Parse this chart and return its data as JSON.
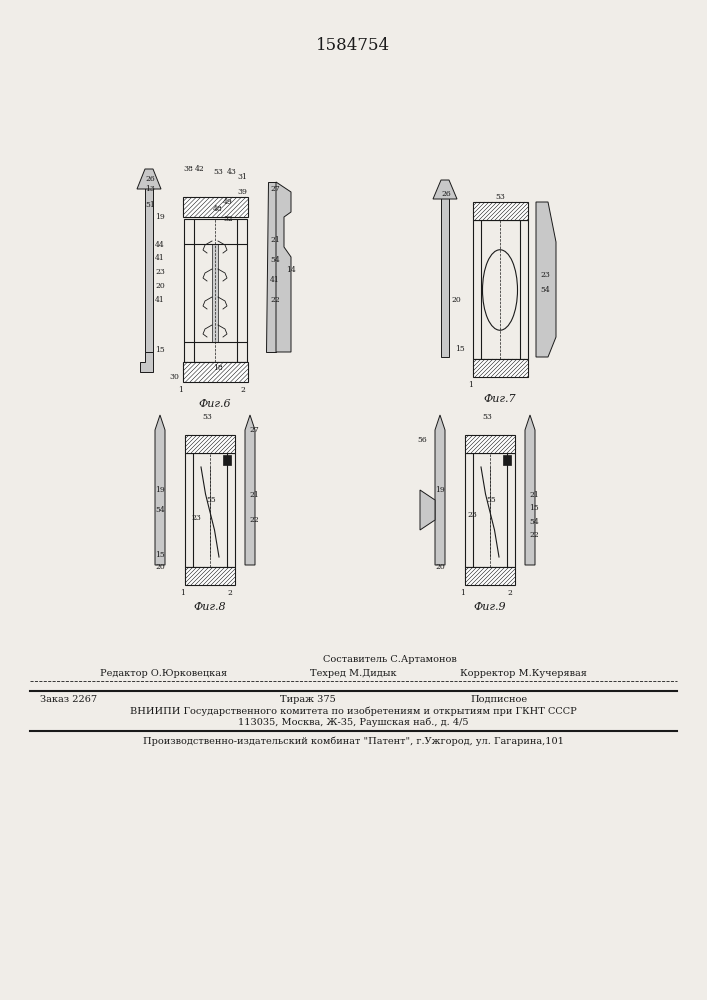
{
  "patent_number": "1584754",
  "bg": "#f0ede8",
  "black": "#1a1a1a",
  "gray_light": "#c8c8c8",
  "gray_mid": "#a0a0a0",
  "white": "#ffffff",
  "footer": {
    "line1": "Составитель С.Артамонов",
    "line2_left": "Редактор О.Юрковецкая",
    "line2_mid": "Техред М.Дидык",
    "line2_right": "Корректор М.Кучерявая",
    "line3_left": "Заказ 2267",
    "line3_mid": "Тираж 375",
    "line3_right": "Подписное",
    "line4": "ВНИИПИ Государственного комитета по изобретениям и открытиям при ГКНТ СССР",
    "line5": "113035, Москва, Ж-35, Раушская наб., д. 4/5",
    "line6": "Производственно-издательский комбинат \"Патент\", г.Ужгород, ул. Гагарина,101"
  }
}
